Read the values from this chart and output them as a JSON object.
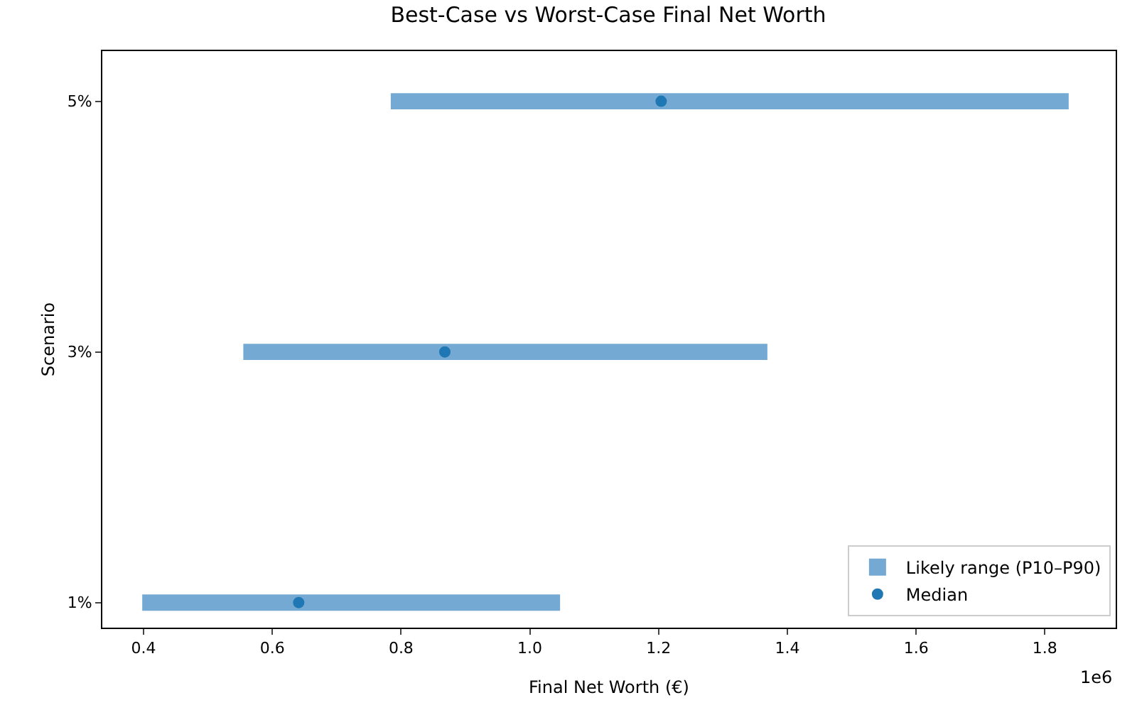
{
  "chart_data": {
    "type": "bar",
    "orientation": "horizontal",
    "title": "Best-Case vs Worst-Case Final Net Worth",
    "xlabel": "Final Net Worth (€)",
    "ylabel": "Scenario",
    "categories": [
      "5%",
      "3%",
      "1%"
    ],
    "series": [
      {
        "name": "Likely range (P10–P90)",
        "color": "#73a9d2",
        "base": [
          0.784,
          0.555,
          0.398
        ],
        "values": [
          1.053,
          0.814,
          0.649
        ]
      },
      {
        "type": "scatter",
        "name": "Median",
        "color": "#1f77b4",
        "marker": "circle",
        "values": [
          1.204,
          0.868,
          0.641
        ]
      }
    ],
    "xlim": [
      0.336,
      1.91
    ],
    "xticks": [
      0.4,
      0.6,
      0.8,
      {
        "value": 1.0,
        "label": "1.0"
      },
      1.2,
      1.4,
      1.6,
      1.8
    ],
    "annotations": [
      "1e6"
    ],
    "grid": false,
    "legend": "bottom right"
  }
}
